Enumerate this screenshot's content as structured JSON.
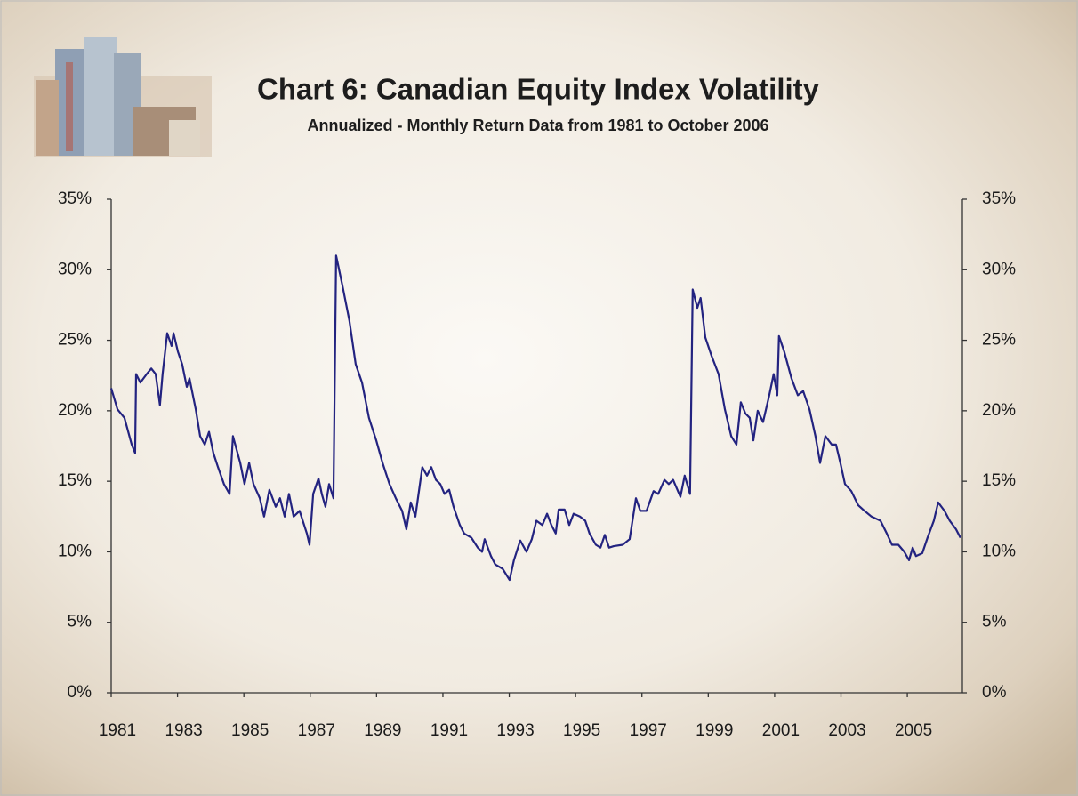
{
  "chart_data": {
    "type": "line",
    "title": "Chart 6: Canadian Equity Index Volatility",
    "subtitle": "Annualized  - Monthly Return Data from 1981 to October 2006",
    "color": "#232380",
    "mirror_y_axis": true,
    "xlim": [
      1981,
      2006.66
    ],
    "xticks": [
      1981,
      1983,
      1985,
      1987,
      1989,
      1991,
      1993,
      1995,
      1997,
      1999,
      2001,
      2003,
      2005
    ],
    "ylim": [
      0,
      35
    ],
    "yticks": [
      {
        "value": 0,
        "label": "0%"
      },
      {
        "value": 5,
        "label": "5%"
      },
      {
        "value": 10,
        "label": "10%"
      },
      {
        "value": 15,
        "label": "15%"
      },
      {
        "value": 20,
        "label": "20%"
      },
      {
        "value": 25,
        "label": "25%"
      },
      {
        "value": 30,
        "label": "30%"
      },
      {
        "value": 35,
        "label": "35%"
      }
    ],
    "x": [
      1981.0,
      1981.19,
      1981.4,
      1981.62,
      1981.72,
      1981.75,
      1981.88,
      1982.07,
      1982.21,
      1982.34,
      1982.47,
      1982.55,
      1982.69,
      1982.82,
      1982.88,
      1983.01,
      1983.14,
      1983.28,
      1983.36,
      1983.55,
      1983.68,
      1983.82,
      1983.95,
      1984.08,
      1984.22,
      1984.4,
      1984.57,
      1984.67,
      1984.89,
      1985.02,
      1985.16,
      1985.29,
      1985.48,
      1985.61,
      1985.77,
      1985.96,
      1986.09,
      1986.23,
      1986.36,
      1986.5,
      1986.68,
      1986.9,
      1986.98,
      1987.09,
      1987.25,
      1987.35,
      1987.46,
      1987.57,
      1987.7,
      1987.78,
      1987.97,
      1988.18,
      1988.37,
      1988.56,
      1988.77,
      1988.99,
      1989.18,
      1989.39,
      1989.58,
      1989.77,
      1989.9,
      1990.03,
      1990.17,
      1990.38,
      1990.52,
      1990.65,
      1990.79,
      1990.92,
      1991.05,
      1991.19,
      1991.32,
      1991.51,
      1991.64,
      1991.86,
      1992.05,
      1992.18,
      1992.26,
      1992.45,
      1992.58,
      1992.8,
      1993.01,
      1993.14,
      1993.33,
      1993.52,
      1993.68,
      1993.82,
      1994.0,
      1994.14,
      1994.27,
      1994.4,
      1994.49,
      1994.67,
      1994.81,
      1994.94,
      1995.13,
      1995.29,
      1995.42,
      1995.61,
      1995.75,
      1995.88,
      1996.01,
      1996.15,
      1996.42,
      1996.63,
      1996.82,
      1996.95,
      1997.14,
      1997.35,
      1997.49,
      1997.68,
      1997.81,
      1997.94,
      1998.16,
      1998.29,
      1998.45,
      1998.53,
      1998.67,
      1998.77,
      1998.91,
      1999.1,
      1999.31,
      1999.5,
      1999.69,
      1999.85,
      1999.98,
      2000.12,
      2000.25,
      2000.36,
      2000.49,
      2000.65,
      2000.84,
      2000.97,
      2001.08,
      2001.13,
      2001.29,
      2001.51,
      2001.7,
      2001.86,
      2002.05,
      2002.23,
      2002.37,
      2002.53,
      2002.72,
      2002.85,
      2002.98,
      2003.12,
      2003.31,
      2003.52,
      2003.71,
      2003.92,
      2004.19,
      2004.38,
      2004.54,
      2004.73,
      2004.91,
      2005.05,
      2005.16,
      2005.26,
      2005.45,
      2005.61,
      2005.8,
      2005.93,
      2006.12,
      2006.28,
      2006.47,
      2006.6
    ],
    "values": [
      21.6,
      20.1,
      19.5,
      17.6,
      17.0,
      22.6,
      22.0,
      22.6,
      23.0,
      22.6,
      20.4,
      22.6,
      25.5,
      24.6,
      25.5,
      24.2,
      23.3,
      21.7,
      22.3,
      20.1,
      18.2,
      17.6,
      18.5,
      17.0,
      16.0,
      14.8,
      14.1,
      18.2,
      16.3,
      14.8,
      16.3,
      14.8,
      13.8,
      12.5,
      14.4,
      13.2,
      13.8,
      12.5,
      14.1,
      12.5,
      12.9,
      11.3,
      10.5,
      14.1,
      15.2,
      14.1,
      13.2,
      14.8,
      13.8,
      31.0,
      28.9,
      26.4,
      23.3,
      22.0,
      19.5,
      17.9,
      16.3,
      14.8,
      13.8,
      12.9,
      11.6,
      13.5,
      12.5,
      16.0,
      15.4,
      16.0,
      15.1,
      14.8,
      14.1,
      14.4,
      13.2,
      11.9,
      11.3,
      11.0,
      10.3,
      10.0,
      10.9,
      9.7,
      9.1,
      8.8,
      8.0,
      9.4,
      10.8,
      10.0,
      10.9,
      12.2,
      11.9,
      12.7,
      11.9,
      11.3,
      13.0,
      13.0,
      11.9,
      12.7,
      12.5,
      12.2,
      11.3,
      10.5,
      10.3,
      11.2,
      10.3,
      10.4,
      10.5,
      10.9,
      13.8,
      12.9,
      12.9,
      14.3,
      14.1,
      15.1,
      14.8,
      15.1,
      13.9,
      15.4,
      14.1,
      28.6,
      27.3,
      28.0,
      25.2,
      23.9,
      22.6,
      20.1,
      18.2,
      17.6,
      20.6,
      19.8,
      19.5,
      17.9,
      20.0,
      19.2,
      21.1,
      22.6,
      21.1,
      25.3,
      24.2,
      22.3,
      21.1,
      21.4,
      20.1,
      18.2,
      16.3,
      18.2,
      17.6,
      17.6,
      16.3,
      14.8,
      14.3,
      13.3,
      12.9,
      12.5,
      12.2,
      11.3,
      10.5,
      10.5,
      10.0,
      9.4,
      10.3,
      9.7,
      9.9,
      11.0,
      12.2,
      13.5,
      12.9,
      12.2,
      11.6,
      11.0
    ]
  }
}
